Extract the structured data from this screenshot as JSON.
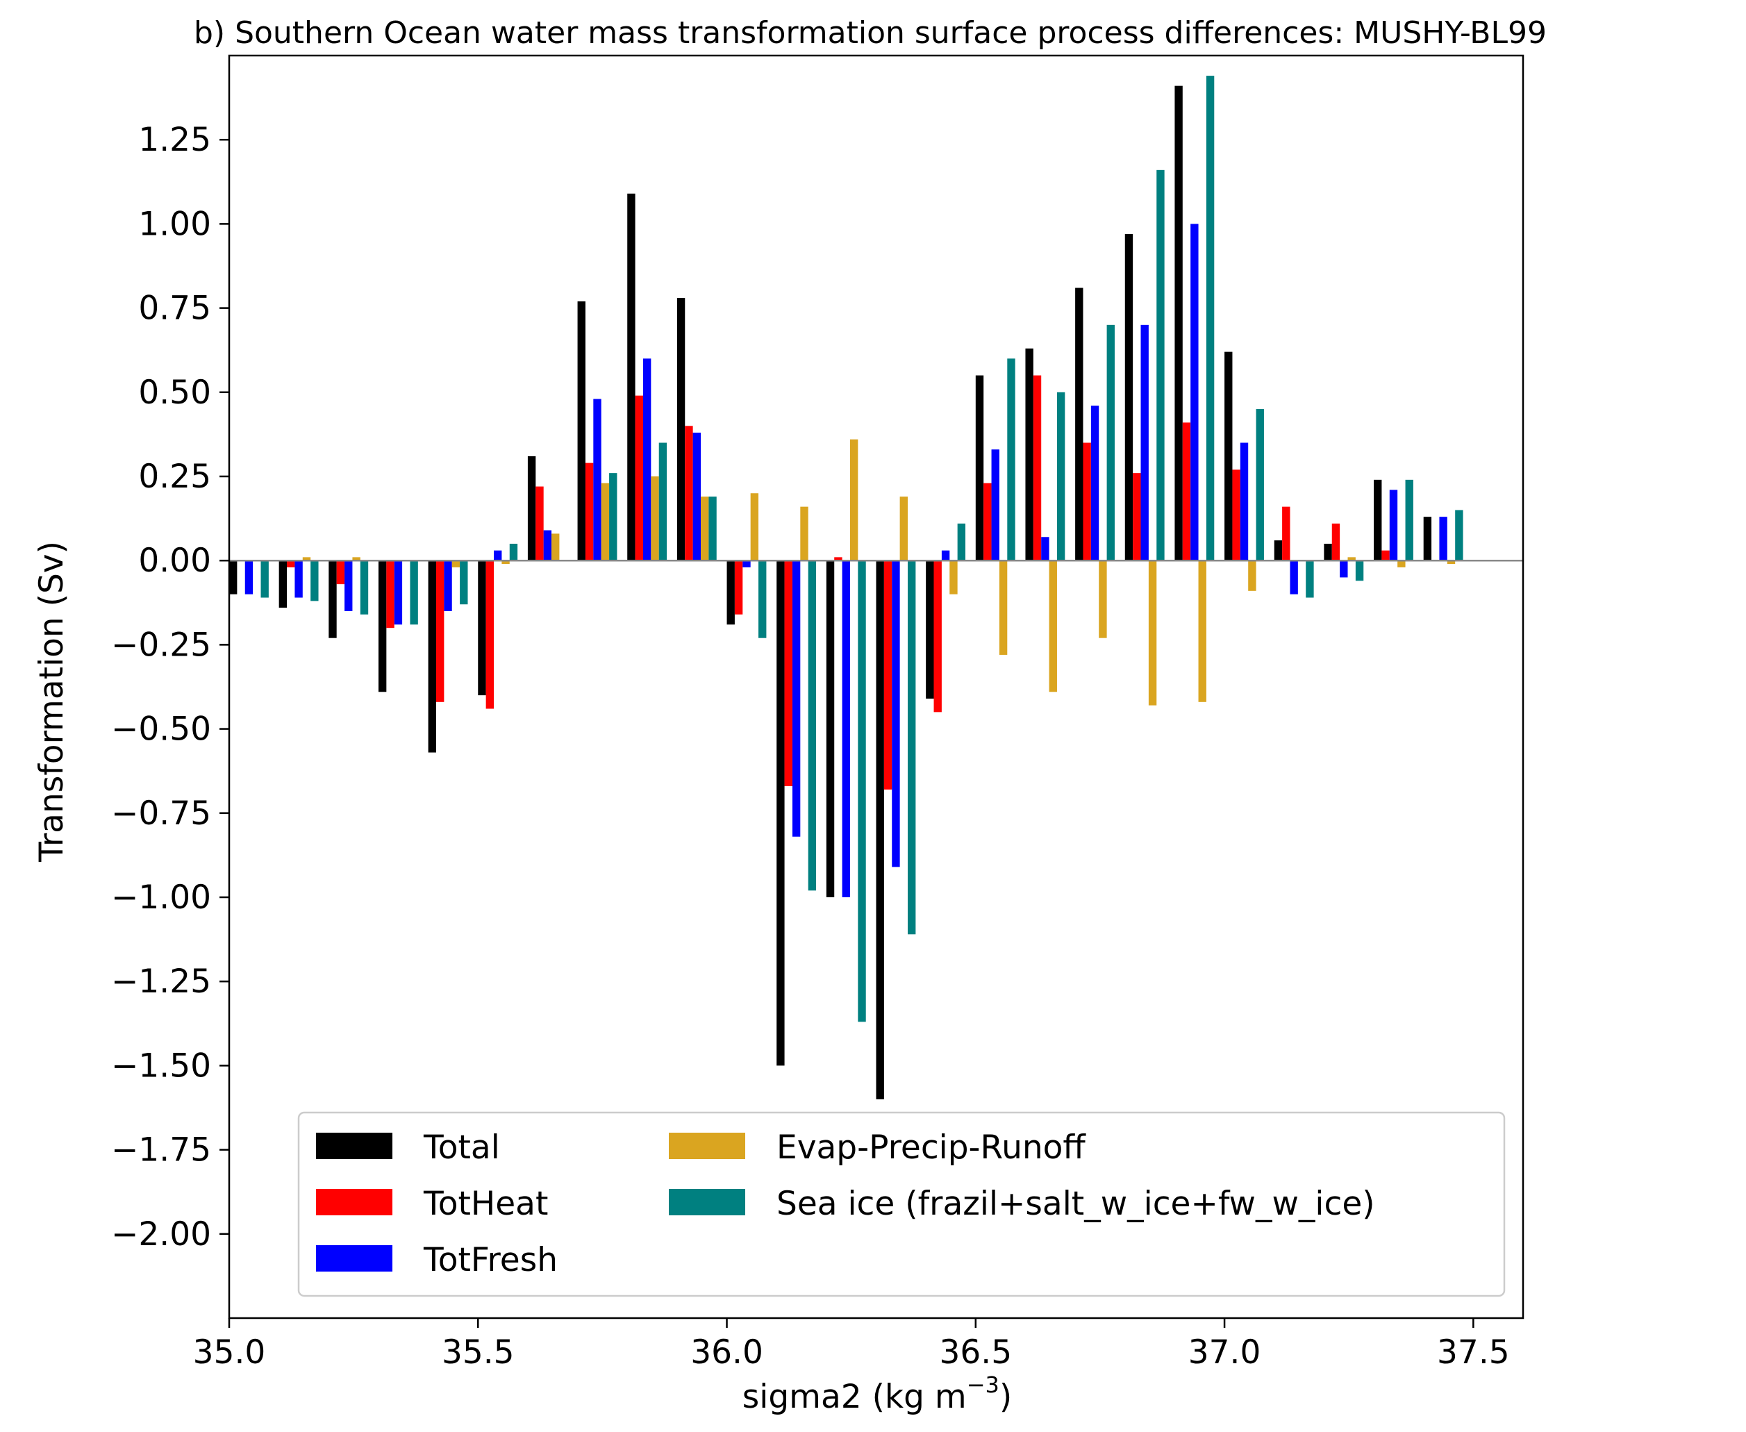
{
  "chart_data": {
    "type": "bar",
    "title": "b) Southern Ocean water mass transformation surface process differences: MUSHY-BL99",
    "xlabel": "sigma2 (kg m",
    "xlabel_exponent": "−3",
    "xlabel_suffix": ")",
    "ylabel": "Transformation (Sv)",
    "xlim": [
      35.0,
      37.6
    ],
    "ylim": [
      -2.25,
      1.5
    ],
    "x_ticks": [
      35.0,
      35.5,
      36.0,
      36.5,
      37.0,
      37.5
    ],
    "x_tick_labels": [
      "35.0",
      "35.5",
      "36.0",
      "36.5",
      "37.0",
      "37.5"
    ],
    "y_ticks": [
      1.25,
      1.0,
      0.75,
      0.5,
      0.25,
      0.0,
      -0.25,
      -0.5,
      -0.75,
      -1.0,
      -1.25,
      -1.5,
      -1.75,
      -2.0
    ],
    "y_tick_labels": [
      "1.25",
      "1.00",
      "0.75",
      "0.50",
      "0.25",
      "0.00",
      "−0.25",
      "−0.50",
      "−0.75",
      "−1.00",
      "−1.25",
      "−1.50",
      "−1.75",
      "−2.00"
    ],
    "bin_centers": [
      35.05,
      35.15,
      35.25,
      35.35,
      35.45,
      35.55,
      35.65,
      35.75,
      35.85,
      35.95,
      36.05,
      36.15,
      36.25,
      36.35,
      36.45,
      36.55,
      36.65,
      36.75,
      36.85,
      36.95,
      37.05,
      37.15,
      37.25,
      37.35,
      37.45
    ],
    "zero_line": true,
    "legend_position": "lower center",
    "series": [
      {
        "name": "Total",
        "color": "#000000",
        "values": [
          -0.1,
          -0.14,
          -0.23,
          -0.39,
          -0.57,
          -0.4,
          0.31,
          0.77,
          1.09,
          0.78,
          -0.19,
          -1.5,
          -1.0,
          -1.6,
          -0.41,
          0.55,
          0.63,
          0.81,
          0.97,
          1.41,
          0.62,
          0.06,
          0.05,
          0.24,
          0.13
        ]
      },
      {
        "name": "TotHeat",
        "color": "#ff0000",
        "values": [
          0.0,
          -0.02,
          -0.07,
          -0.2,
          -0.42,
          -0.44,
          0.22,
          0.29,
          0.49,
          0.4,
          -0.16,
          -0.67,
          0.01,
          -0.68,
          -0.45,
          0.23,
          0.55,
          0.35,
          0.26,
          0.41,
          0.27,
          0.16,
          0.11,
          0.03,
          0.0
        ]
      },
      {
        "name": "TotFresh",
        "color": "#0000ff",
        "values": [
          -0.1,
          -0.11,
          -0.15,
          -0.19,
          -0.15,
          0.03,
          0.09,
          0.48,
          0.6,
          0.38,
          -0.02,
          -0.82,
          -1.0,
          -0.91,
          0.03,
          0.33,
          0.07,
          0.46,
          0.7,
          1.0,
          0.35,
          -0.1,
          -0.05,
          0.21,
          0.13
        ]
      },
      {
        "name": "Evap-Precip-Runoff",
        "color": "#daa520",
        "values": [
          0.0,
          0.01,
          0.01,
          0.0,
          -0.02,
          -0.01,
          0.08,
          0.23,
          0.25,
          0.19,
          0.2,
          0.16,
          0.36,
          0.19,
          -0.1,
          -0.28,
          -0.39,
          -0.23,
          -0.43,
          -0.42,
          -0.09,
          0.0,
          0.01,
          -0.02,
          -0.01
        ]
      },
      {
        "name": "Sea ice (frazil+salt_w_ice+fw_w_ice)",
        "color": "#008080",
        "values": [
          -0.11,
          -0.12,
          -0.16,
          -0.19,
          -0.13,
          0.05,
          0.0,
          0.26,
          0.35,
          0.19,
          -0.23,
          -0.98,
          -1.37,
          -1.11,
          0.11,
          0.6,
          0.5,
          0.7,
          1.16,
          1.44,
          0.45,
          -0.11,
          -0.06,
          0.24,
          0.15
        ]
      }
    ]
  }
}
